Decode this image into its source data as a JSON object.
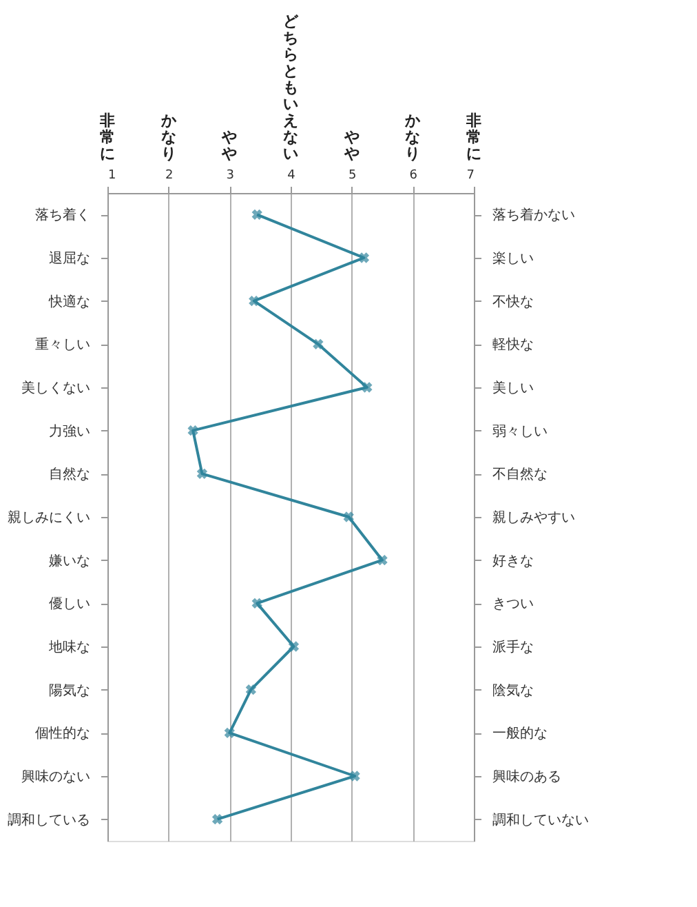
{
  "chart_data": {
    "type": "line",
    "categories": [
      "落ち着く",
      "退屈な",
      "快適な",
      "重々しい",
      "美しくない",
      "力強い",
      "自然な",
      "親しみにくい",
      "嫌いな",
      "優しい",
      "地味な",
      "陽気な",
      "個性的な",
      "興味のない",
      "調和している"
    ],
    "y2_categories": [
      "落ち着かない",
      "楽しい",
      "不快な",
      "軽快な",
      "美しい",
      "弱々しい",
      "不自然な",
      "親しみやすい",
      "好きな",
      "きつい",
      "派手な",
      "陰気な",
      "一般的な",
      "興味のある",
      "調和していない"
    ],
    "orientation": "horizontal",
    "values": [
      3.45,
      5.2,
      3.4,
      4.45,
      5.25,
      2.4,
      2.55,
      4.95,
      5.5,
      3.45,
      4.05,
      3.35,
      3.0,
      5.05,
      2.8
    ],
    "color": "#31859c",
    "marker": "cross",
    "line_style": "solid",
    "grid": "x",
    "xlim": [
      1,
      7
    ],
    "xticks": [
      1,
      2,
      3,
      4,
      5,
      6,
      7
    ],
    "annotations": [
      "非常に",
      "かなり",
      "やや",
      "どちらともいえない",
      "やや",
      "かなり",
      "非常に"
    ]
  }
}
